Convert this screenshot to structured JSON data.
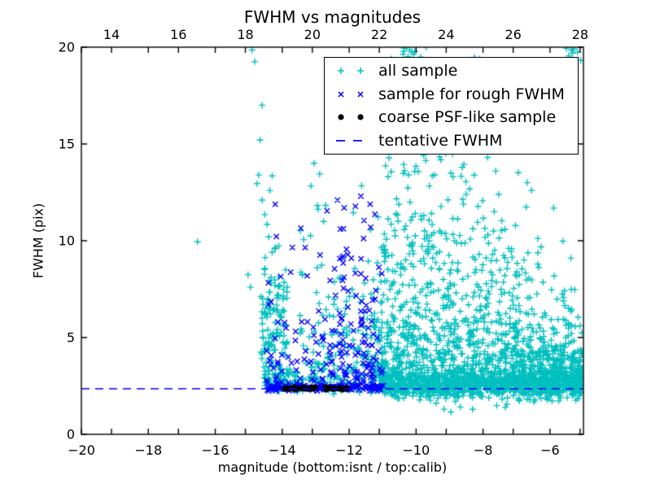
{
  "title": "FWHM vs magnitudes",
  "axes": {
    "xlabel": "magnitude (bottom:isnt / top:calib)",
    "ylabel": "FWHM (pix)",
    "x_range": [
      -20,
      -5
    ],
    "y_range": [
      0,
      20
    ],
    "x_ticks": [
      -20,
      -18,
      -16,
      -14,
      -12,
      -10,
      -8,
      -6
    ],
    "y_ticks": [
      0,
      5,
      10,
      15,
      20
    ],
    "top_ticks": [
      14,
      16,
      18,
      20,
      22,
      24,
      26,
      28
    ],
    "top_axis_offset": 33.1,
    "spine_color": "#000000",
    "background": "#ffffff"
  },
  "chart_data": {
    "type": "scatter",
    "title": "FWHM vs magnitudes",
    "xlabel": "magnitude (bottom:isnt / top:calib)",
    "ylabel": "FWHM (pix)",
    "xlim": [
      -20,
      -5
    ],
    "ylim": [
      0,
      20
    ],
    "grid": false,
    "legend_position": "upper right",
    "tentative_fwhm": 2.35,
    "random_seed": 42,
    "series": [
      {
        "name": "all sample",
        "marker": "plus",
        "color": "#00bfbf",
        "clusters": [
          {
            "points": [
              [
                -14.9,
                19.85
              ],
              [
                -14.82,
                19.25
              ],
              [
                -14.6,
                17.0
              ],
              [
                -14.66,
                15.2
              ],
              [
                -16.53,
                9.95
              ],
              [
                -14.7,
                13.4
              ],
              [
                -14.75,
                12.95
              ],
              [
                -14.3,
                13.35
              ],
              [
                -14.37,
                12.6
              ],
              [
                -14.6,
                12.1
              ],
              [
                -14.52,
                11.35
              ],
              [
                -14.45,
                10.85
              ],
              [
                -14.4,
                10.2
              ],
              [
                -14.22,
                9.6
              ],
              [
                -15.02,
                8.25
              ],
              [
                -14.95,
                7.6
              ],
              [
                -13.05,
                14.0
              ],
              [
                -12.88,
                13.45
              ],
              [
                -12.02,
                16.75
              ],
              [
                -11.78,
                14.9
              ],
              [
                -8.1,
                19.4
              ],
              [
                -7.62,
                18.7
              ],
              [
                -9.0,
                18.2
              ],
              [
                -6.68,
                13.0
              ],
              [
                -6.55,
                12.6
              ]
            ]
          },
          {
            "count": 120,
            "x": [
              -14.65,
              -13.85
            ],
            "y": {
              "dist": "gauss",
              "c": 5.6,
              "s": 1.9,
              "clip": [
                3.0,
                10.6
              ]
            }
          },
          {
            "count": 70,
            "x": [
              -14.55,
              -13.6
            ],
            "y": {
              "dist": "gauss",
              "c": 2.8,
              "s": 0.35,
              "clip": [
                2.2,
                3.8
              ]
            }
          },
          {
            "count": 70,
            "x": [
              -13.6,
              -11.05
            ],
            "y": {
              "dist": "gauss",
              "c": 2.5,
              "s": 0.25,
              "clip": [
                2.0,
                3.2
              ]
            }
          },
          {
            "count": 140,
            "x": [
              -13.6,
              -11.25
            ],
            "y": {
              "dist": "exp",
              "min": 2.8,
              "scaleAt": [
                [
                  -13.6,
                  2.6
                ]
              ],
              "max": 13.0
            }
          },
          {
            "count": 1250,
            "x": [
              -11.3,
              -5.02
            ],
            "y": {
              "dist": "exp",
              "min": 2.7,
              "scaleAt": [
                [
                  -11.3,
                  2.3
                ],
                [
                  -10,
                  4.2
                ],
                [
                  -8.7,
                  4.2
                ],
                [
                  -7.5,
                  2.8
                ],
                [
                  -6.3,
                  1.7
                ],
                [
                  -5,
                  1.2
                ]
              ],
              "max": 20.3
            }
          },
          {
            "count": 950,
            "x": [
              -11.05,
              -5.02
            ],
            "y": {
              "dist": "gauss",
              "c": 2.55,
              "s": 0.33,
              "clip": [
                1.7,
                3.6
              ]
            }
          },
          {
            "count": 10,
            "x": [
              -11.0,
              -5.1
            ],
            "y": {
              "dist": "uniform",
              "r": [
                1.1,
                1.9
              ]
            }
          },
          {
            "count": 14,
            "x": [
              -10.85,
              -9.55
            ],
            "y": {
              "dist": "uniform",
              "r": [
                19.2,
                20.25
              ]
            }
          },
          {
            "count": 9,
            "x": [
              -5.55,
              -5.02
            ],
            "y": {
              "dist": "uniform",
              "r": [
                19.2,
                20.1
              ]
            }
          },
          {
            "count": 14,
            "x": [
              -11.0,
              -8.55
            ],
            "y": {
              "dist": "uniform",
              "r": [
                13.3,
                14.4
              ]
            }
          }
        ]
      },
      {
        "name": "sample for rough FWHM",
        "marker": "x",
        "color": "#0000ff",
        "clusters": [
          {
            "count": 150,
            "x": [
              -14.45,
              -10.98
            ],
            "y": {
              "dist": "gauss",
              "c": 2.42,
              "s": 0.08,
              "clip": [
                2.2,
                2.65
              ]
            }
          },
          {
            "count": 130,
            "x": [
              -14.5,
              -11.0
            ],
            "y": {
              "dist": "exp",
              "min": 2.6,
              "scaleAt": [
                [
                  -14.5,
                  2.9
                ]
              ],
              "max": 12.3
            }
          },
          {
            "count": 55,
            "x": [
              -12.3,
              -11.0
            ],
            "y": {
              "dist": "exp",
              "min": 2.6,
              "scaleAt": [
                [
                  -12.3,
                  3.6
                ]
              ],
              "max": 12.3
            }
          },
          {
            "points": [
              [
                -12.35,
                12.1
              ],
              [
                -12.15,
                11.7
              ],
              [
                -11.65,
                12.3
              ]
            ]
          }
        ]
      },
      {
        "name": "coarse PSF-like sample",
        "marker": "dot",
        "color": "#000000",
        "clusters": [
          {
            "count": 34,
            "x": [
              -13.95,
              -11.95
            ],
            "y": {
              "dist": "gauss",
              "c": 2.37,
              "s": 0.035,
              "clip": [
                2.28,
                2.46
              ]
            }
          }
        ]
      },
      {
        "name": "tentative FWHM",
        "marker": "dashed-line",
        "color": "#0000ff",
        "line_y": 2.35,
        "dash": [
          10,
          7
        ]
      }
    ]
  }
}
